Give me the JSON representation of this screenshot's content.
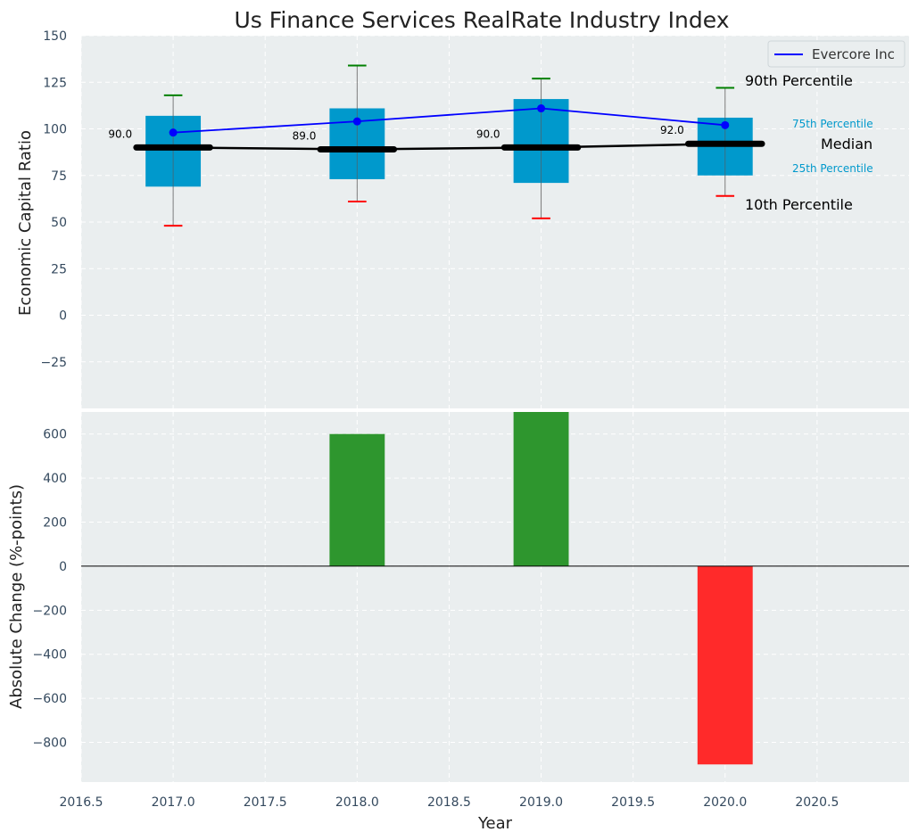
{
  "chart_data": [
    {
      "type": "box",
      "title": "Us Finance Services RealRate Industry Index",
      "ylabel": "Economic Capital Ratio",
      "xlim": [
        2016.5,
        2021.0
      ],
      "ylim": [
        -50,
        150
      ],
      "yticks": [
        -25,
        0,
        25,
        50,
        75,
        100,
        125,
        150
      ],
      "grid": true,
      "colors": {
        "box": "#0099cc",
        "median": "#000000",
        "p90": "#008000",
        "p10": "#ff0000",
        "company": "#0000ff",
        "panel_bg": "#eaeeef"
      },
      "boxes": [
        {
          "year": 2017,
          "p10": 48,
          "p25": 69,
          "median": 90,
          "p75": 107,
          "p90": 118,
          "median_label": "90.0"
        },
        {
          "year": 2018,
          "p10": 61,
          "p25": 73,
          "median": 89,
          "p75": 111,
          "p90": 134,
          "median_label": "89.0"
        },
        {
          "year": 2019,
          "p10": 52,
          "p25": 71,
          "median": 90,
          "p75": 116,
          "p90": 127,
          "median_label": "90.0"
        },
        {
          "year": 2020,
          "p10": 64,
          "p25": 75,
          "median": 92,
          "p75": 106,
          "p90": 122,
          "median_label": "92.0"
        }
      ],
      "series": [
        {
          "name": "Evercore Inc",
          "x": [
            2017,
            2018,
            2019,
            2020
          ],
          "values": [
            98,
            104,
            111,
            102
          ]
        }
      ],
      "legend": {
        "position": "top-right",
        "entries": [
          "Evercore Inc"
        ]
      },
      "annotations": {
        "p90": "90th Percentile",
        "p75": "75th Percentile",
        "median": "Median",
        "p25": "25th Percentile",
        "p10": "10th Percentile"
      }
    },
    {
      "type": "bar",
      "xlabel": "Year",
      "ylabel": "Absolute Change (%-points)",
      "xlim": [
        2016.5,
        2021.0
      ],
      "ylim": [
        -980,
        700
      ],
      "xticks": [
        "2016.5",
        "2017.0",
        "2017.5",
        "2018.0",
        "2018.5",
        "2019.0",
        "2019.5",
        "2020.0",
        "2020.5"
      ],
      "yticks": [
        -800,
        -600,
        -400,
        -200,
        0,
        200,
        400,
        600
      ],
      "grid": true,
      "colors": {
        "positive": "#2e962e",
        "negative": "#ff2a2a"
      },
      "x": [
        2017,
        2018,
        2019,
        2020
      ],
      "values": [
        0,
        600,
        700,
        -900
      ]
    }
  ]
}
